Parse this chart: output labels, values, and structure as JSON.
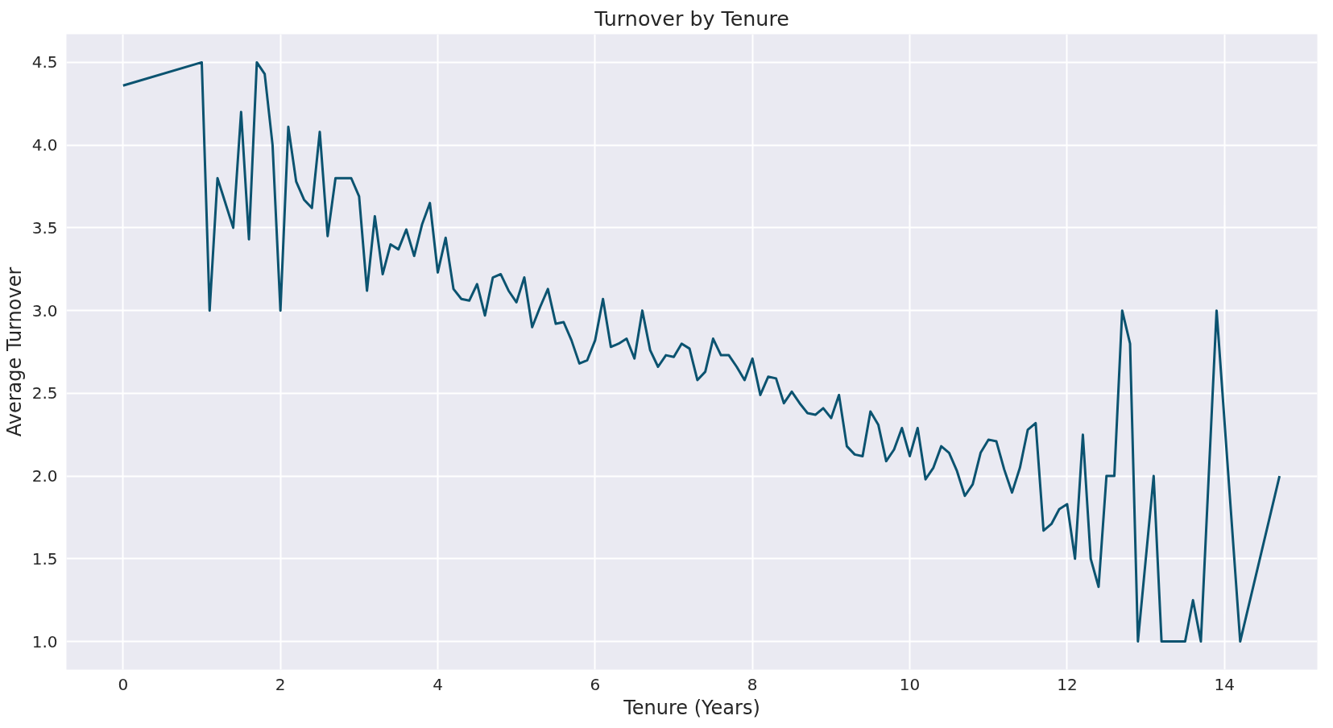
{
  "chart_data": {
    "type": "line",
    "title": "Turnover by Tenure",
    "xlabel": "Tenure (Years)",
    "ylabel": "Average Turnover",
    "x": [
      0,
      1.0,
      1.1,
      1.2,
      1.3,
      1.4,
      1.5,
      1.6,
      1.7,
      1.8,
      1.9,
      2.0,
      2.1,
      2.2,
      2.3,
      2.4,
      2.5,
      2.6,
      2.7,
      2.8,
      2.9,
      3.0,
      3.1,
      3.2,
      3.3,
      3.4,
      3.5,
      3.6,
      3.7,
      3.8,
      3.9,
      4.0,
      4.1,
      4.2,
      4.3,
      4.4,
      4.5,
      4.6,
      4.7,
      4.8,
      4.9,
      5.0,
      5.1,
      5.2,
      5.3,
      5.4,
      5.5,
      5.6,
      5.7,
      5.8,
      5.9,
      6.0,
      6.1,
      6.2,
      6.3,
      6.4,
      6.5,
      6.6,
      6.7,
      6.8,
      6.9,
      7.0,
      7.1,
      7.2,
      7.3,
      7.4,
      7.5,
      7.6,
      7.7,
      7.8,
      7.9,
      8.0,
      8.1,
      8.2,
      8.3,
      8.4,
      8.5,
      8.6,
      8.7,
      8.8,
      8.9,
      9.0,
      9.1,
      9.2,
      9.3,
      9.4,
      9.5,
      9.6,
      9.7,
      9.8,
      9.9,
      10.0,
      10.1,
      10.2,
      10.3,
      10.4,
      10.5,
      10.6,
      10.7,
      10.8,
      10.9,
      11.0,
      11.1,
      11.2,
      11.3,
      11.4,
      11.5,
      11.6,
      11.7,
      11.8,
      11.9,
      12.0,
      12.1,
      12.2,
      12.3,
      12.4,
      12.5,
      12.6,
      12.7,
      12.8,
      12.9,
      13.0,
      13.1,
      13.2,
      13.3,
      13.4,
      13.5,
      13.6,
      13.7,
      13.9,
      14.2,
      14.7
    ],
    "series": [
      {
        "color": "#0b5370",
        "values": [
          4.36,
          4.5,
          3.0,
          3.8,
          3.65,
          3.5,
          4.2,
          3.43,
          4.5,
          4.43,
          4.0,
          3.0,
          4.11,
          3.78,
          3.67,
          3.62,
          4.08,
          3.45,
          3.8,
          3.8,
          3.8,
          3.69,
          3.12,
          3.57,
          3.22,
          3.4,
          3.37,
          3.49,
          3.33,
          3.52,
          3.65,
          3.23,
          3.44,
          3.13,
          3.07,
          3.06,
          3.16,
          2.97,
          3.2,
          3.22,
          3.12,
          3.05,
          3.2,
          2.9,
          3.02,
          3.13,
          2.92,
          2.93,
          2.82,
          2.68,
          2.7,
          2.82,
          3.07,
          2.78,
          2.8,
          2.83,
          2.71,
          3.0,
          2.76,
          2.66,
          2.73,
          2.72,
          2.8,
          2.77,
          2.58,
          2.63,
          2.83,
          2.73,
          2.73,
          2.66,
          2.58,
          2.71,
          2.49,
          2.6,
          2.59,
          2.44,
          2.51,
          2.44,
          2.38,
          2.37,
          2.41,
          2.35,
          2.49,
          2.18,
          2.13,
          2.12,
          2.39,
          2.31,
          2.09,
          2.16,
          2.29,
          2.12,
          2.29,
          1.98,
          2.05,
          2.18,
          2.14,
          2.03,
          1.88,
          1.95,
          2.14,
          2.22,
          2.21,
          2.04,
          1.9,
          2.05,
          2.28,
          2.32,
          1.67,
          1.71,
          1.8,
          1.83,
          1.5,
          2.25,
          1.5,
          1.33,
          2.0,
          2.0,
          3.0,
          2.8,
          1.0,
          1.5,
          2.0,
          1.0,
          1.0,
          1.0,
          1.0,
          1.25,
          1.0,
          3.0,
          1.0,
          2.0
        ]
      }
    ],
    "xlim": [
      -0.72,
      15.18
    ],
    "ylim": [
      0.83,
      4.67
    ],
    "xticks": [
      0,
      2,
      4,
      6,
      8,
      10,
      12,
      14
    ],
    "yticks": [
      {
        "value": 1.0,
        "label": "1.0"
      },
      {
        "value": 1.5,
        "label": "1.5"
      },
      {
        "value": 2.0,
        "label": "2.0"
      },
      {
        "value": 2.5,
        "label": "2.5"
      },
      {
        "value": 3.0,
        "label": "3.0"
      },
      {
        "value": 3.5,
        "label": "3.5"
      },
      {
        "value": 4.0,
        "label": "4.0"
      },
      {
        "value": 4.5,
        "label": "4.5"
      }
    ],
    "grid": true,
    "line_style": "solid"
  }
}
